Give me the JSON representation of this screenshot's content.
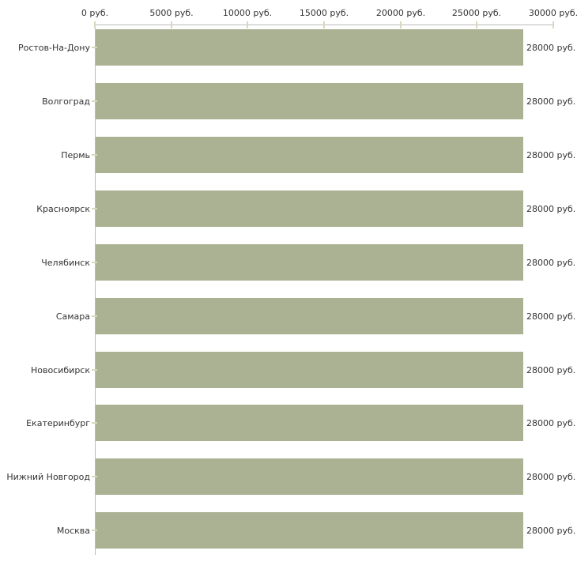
{
  "chart_data": {
    "type": "bar",
    "orientation": "horizontal",
    "title": "",
    "categories": [
      "Ростов-На-Дону",
      "Волгоград",
      "Пермь",
      "Красноярск",
      "Челябинск",
      "Самара",
      "Новосибирск",
      "Екатеринбург",
      "Нижний Новгород",
      "Москва"
    ],
    "values": [
      28000,
      28000,
      28000,
      28000,
      28000,
      28000,
      28000,
      28000,
      28000,
      28000
    ],
    "value_labels": [
      "28000 руб.",
      "28000 руб.",
      "28000 руб.",
      "28000 руб.",
      "28000 руб.",
      "28000 руб.",
      "28000 руб.",
      "28000 руб.",
      "28000 руб.",
      "28000 руб."
    ],
    "x_axis": {
      "position": "top",
      "xlim": [
        0,
        30000
      ],
      "ticks": [
        {
          "value": 0,
          "label": "0 руб."
        },
        {
          "value": 5000,
          "label": "5000 руб."
        },
        {
          "value": 10000,
          "label": "10000 руб."
        },
        {
          "value": 15000,
          "label": "15000 руб."
        },
        {
          "value": 20000,
          "label": "20000 руб."
        },
        {
          "value": 25000,
          "label": "25000 руб."
        },
        {
          "value": 30000,
          "label": "30000 руб."
        }
      ]
    },
    "grid": false,
    "legend": false,
    "colors": {
      "bar": "#abb294",
      "axis_line": "#bdbdbd",
      "tick_mark": "#d6d9bd",
      "text": "#333333",
      "background": "#ffffff"
    }
  }
}
